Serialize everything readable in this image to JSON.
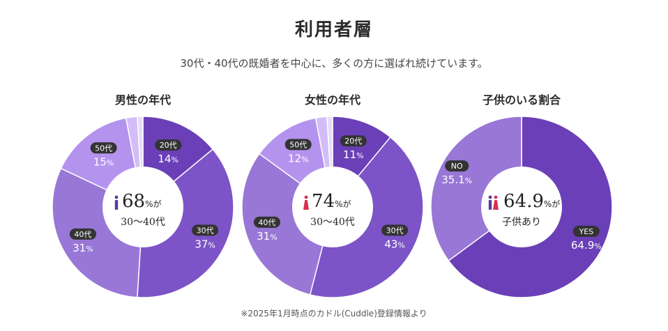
{
  "page": {
    "title": "利用者層",
    "subtitle": "30代・40代の既婚者を中心に、多くの方に選ばれ続けています。",
    "footnote": "※2025年1月時点のカドル(Cuddle)登録情報より"
  },
  "colors": {
    "slice_darkest": "#6a3fb8",
    "slice_dark": "#7c54c8",
    "slice_mid": "#9877d6",
    "slice_light": "#b493ef",
    "slice_lighter": "#d3bdf7",
    "slice_lightest": "#e6dbfb",
    "pill_bg": "#333333",
    "icon_male": "#5a3c9a",
    "icon_female": "#d9304f"
  },
  "chart_data": [
    {
      "type": "pie",
      "title": "男性の年代",
      "slices": [
        {
          "label": "20代",
          "value": 14,
          "pct_text": "14",
          "unit": "%"
        },
        {
          "label": "30代",
          "value": 37,
          "pct_text": "37",
          "unit": "%"
        },
        {
          "label": "40代",
          "value": 31,
          "pct_text": "31",
          "unit": "%"
        },
        {
          "label": "50代",
          "value": 15,
          "pct_text": "15",
          "unit": "%"
        },
        {
          "label": "",
          "value": 2,
          "pct_text": "",
          "unit": ""
        },
        {
          "label": "",
          "value": 1,
          "pct_text": "",
          "unit": ""
        }
      ],
      "center": {
        "value": "68",
        "unit": "%が",
        "sub": "30〜40代",
        "icon": "male-icon"
      }
    },
    {
      "type": "pie",
      "title": "女性の年代",
      "slices": [
        {
          "label": "20代",
          "value": 11,
          "pct_text": "11",
          "unit": "%"
        },
        {
          "label": "30代",
          "value": 43,
          "pct_text": "43",
          "unit": "%"
        },
        {
          "label": "40代",
          "value": 31,
          "pct_text": "31",
          "unit": "%"
        },
        {
          "label": "50代",
          "value": 12,
          "pct_text": "12",
          "unit": "%"
        },
        {
          "label": "",
          "value": 2,
          "pct_text": "",
          "unit": ""
        },
        {
          "label": "",
          "value": 1,
          "pct_text": "",
          "unit": ""
        }
      ],
      "center": {
        "value": "74",
        "unit": "%が",
        "sub": "30〜40代",
        "icon": "female-icon"
      }
    },
    {
      "type": "pie",
      "title": "子供のいる割合",
      "slices": [
        {
          "label": "YES",
          "value": 64.9,
          "pct_text": "64.9",
          "unit": "%"
        },
        {
          "label": "NO",
          "value": 35.1,
          "pct_text": "35.1",
          "unit": "%"
        }
      ],
      "center": {
        "value": "64.9",
        "unit": "%が",
        "sub": "子供あり",
        "icon": "couple-icon"
      }
    }
  ]
}
